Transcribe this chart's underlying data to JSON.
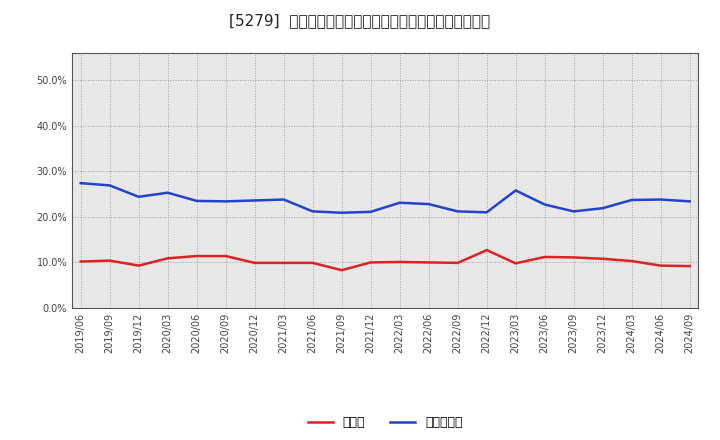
{
  "title": "[5279]  現預金、有利子負債の総資産に対する比率の推移",
  "x_labels": [
    "2019/06",
    "2019/09",
    "2019/12",
    "2020/03",
    "2020/06",
    "2020/09",
    "2020/12",
    "2021/03",
    "2021/06",
    "2021/09",
    "2021/12",
    "2022/03",
    "2022/06",
    "2022/09",
    "2022/12",
    "2023/03",
    "2023/06",
    "2023/09",
    "2023/12",
    "2024/03",
    "2024/06",
    "2024/09"
  ],
  "cash": [
    0.102,
    0.104,
    0.093,
    0.109,
    0.114,
    0.114,
    0.099,
    0.099,
    0.099,
    0.083,
    0.1,
    0.101,
    0.1,
    0.099,
    0.127,
    0.098,
    0.112,
    0.111,
    0.108,
    0.103,
    0.093,
    0.092
  ],
  "debt": [
    0.274,
    0.269,
    0.244,
    0.253,
    0.235,
    0.234,
    0.236,
    0.238,
    0.212,
    0.209,
    0.211,
    0.231,
    0.228,
    0.212,
    0.21,
    0.258,
    0.227,
    0.212,
    0.219,
    0.237,
    0.238,
    0.234
  ],
  "cash_color": "#dd2222",
  "debt_color": "#2244cc",
  "background_color": "#ffffff",
  "plot_bg_color": "#e8e8e8",
  "grid_color": "#999999",
  "legend_cash": "現預金",
  "legend_debt": "有利子負債",
  "ylim": [
    0.0,
    0.56
  ],
  "yticks": [
    0.0,
    0.1,
    0.2,
    0.3,
    0.4,
    0.5
  ],
  "title_fontsize": 11,
  "line_width": 1.8
}
